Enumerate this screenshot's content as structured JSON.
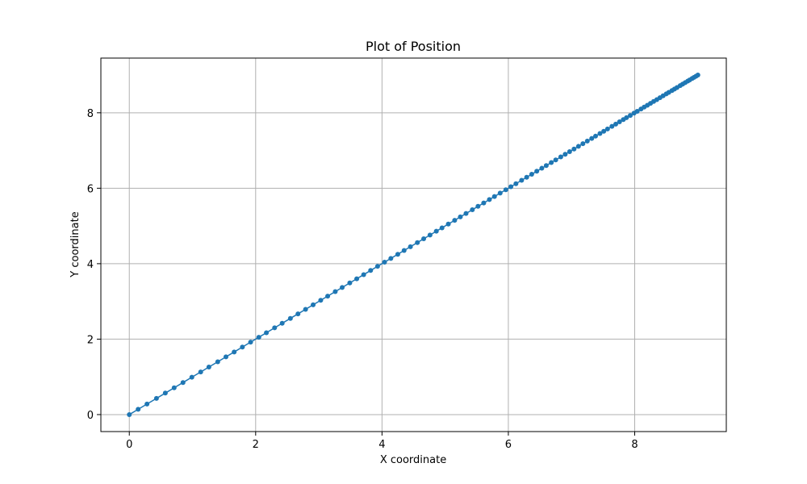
{
  "chart_data": {
    "type": "line",
    "title": "Plot of Position",
    "xlabel": "X coordinate",
    "ylabel": "Y coordinate",
    "xlim": [
      -0.45,
      9.45
    ],
    "ylim": [
      -0.45,
      9.45
    ],
    "xticks": [
      0,
      2,
      4,
      6,
      8
    ],
    "yticks": [
      0,
      2,
      4,
      6,
      8
    ],
    "xtick_labels": [
      "0",
      "2",
      "4",
      "6",
      "8"
    ],
    "ytick_labels": [
      "0",
      "2",
      "4",
      "6",
      "8"
    ],
    "grid": true,
    "marker": "circle",
    "series": [
      {
        "color": "#1f77b4",
        "x": [
          0.0,
          0.14,
          0.28,
          0.43,
          0.57,
          0.71,
          0.85,
          0.99,
          1.13,
          1.26,
          1.4,
          1.53,
          1.66,
          1.79,
          1.92,
          2.05,
          2.17,
          2.3,
          2.42,
          2.55,
          2.67,
          2.79,
          2.91,
          3.03,
          3.14,
          3.26,
          3.37,
          3.49,
          3.6,
          3.71,
          3.82,
          3.93,
          4.04,
          4.14,
          4.25,
          4.35,
          4.45,
          4.56,
          4.66,
          4.76,
          4.86,
          4.95,
          5.05,
          5.15,
          5.24,
          5.33,
          5.43,
          5.52,
          5.61,
          5.7,
          5.78,
          5.87,
          5.96,
          6.04,
          6.12,
          6.21,
          6.29,
          6.37,
          6.45,
          6.53,
          6.6,
          6.68,
          6.75,
          6.83,
          6.9,
          6.97,
          7.04,
          7.11,
          7.18,
          7.25,
          7.32,
          7.38,
          7.45,
          7.51,
          7.57,
          7.64,
          7.7,
          7.76,
          7.82,
          7.87,
          7.93,
          7.99,
          8.04,
          8.1,
          8.15,
          8.2,
          8.25,
          8.3,
          8.35,
          8.4,
          8.45,
          8.5,
          8.54,
          8.59,
          8.63,
          8.67,
          8.72,
          8.76,
          8.8,
          8.84,
          8.87,
          8.91,
          8.94,
          8.97,
          9.0
        ],
        "y": [
          0.0,
          0.14,
          0.28,
          0.43,
          0.57,
          0.71,
          0.85,
          0.99,
          1.13,
          1.26,
          1.4,
          1.53,
          1.66,
          1.79,
          1.92,
          2.05,
          2.17,
          2.3,
          2.42,
          2.55,
          2.67,
          2.79,
          2.91,
          3.03,
          3.14,
          3.26,
          3.37,
          3.49,
          3.6,
          3.71,
          3.82,
          3.93,
          4.04,
          4.14,
          4.25,
          4.35,
          4.45,
          4.56,
          4.66,
          4.76,
          4.86,
          4.95,
          5.05,
          5.15,
          5.24,
          5.33,
          5.43,
          5.52,
          5.61,
          5.7,
          5.78,
          5.87,
          5.96,
          6.04,
          6.12,
          6.21,
          6.29,
          6.37,
          6.45,
          6.53,
          6.6,
          6.68,
          6.75,
          6.83,
          6.9,
          6.97,
          7.04,
          7.11,
          7.18,
          7.25,
          7.32,
          7.38,
          7.45,
          7.51,
          7.57,
          7.64,
          7.7,
          7.76,
          7.82,
          7.87,
          7.93,
          7.99,
          8.04,
          8.1,
          8.15,
          8.2,
          8.25,
          8.3,
          8.35,
          8.4,
          8.45,
          8.5,
          8.54,
          8.59,
          8.63,
          8.67,
          8.72,
          8.76,
          8.8,
          8.84,
          8.87,
          8.91,
          8.94,
          8.97,
          9.0
        ]
      }
    ]
  }
}
